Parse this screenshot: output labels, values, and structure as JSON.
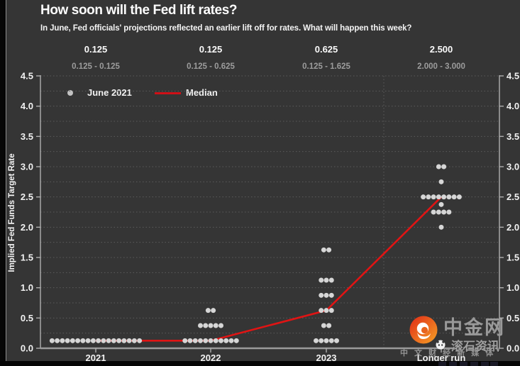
{
  "header": {
    "title": "How soon will the Fed lift rates?",
    "subtitle": "In June, Fed officials' projections reflected an earlier lift off for rates. What will happen this week?"
  },
  "chart_data": {
    "type": "scatter",
    "title": "How soon will the Fed lift rates?",
    "ylabel": "Implied Fed Funds Target Rate",
    "xlabel": "",
    "ylim": [
      0,
      4.5
    ],
    "ytick_step": 0.5,
    "grid_step": 0.25,
    "grid": "dashed, horizontal every 0.25, dual y-axis labels left and right",
    "categories": [
      "2021",
      "2022",
      "2023",
      "Longer run"
    ],
    "median_labels": [
      "0.125",
      "0.125",
      "0.625",
      "2.500"
    ],
    "range_labels": [
      "0.125 - 0.125",
      "0.125 - 0.625",
      "0.125 - 1.625",
      "2.000 - 3.000"
    ],
    "series": [
      {
        "name": "June 2021",
        "type": "dots",
        "points": [
          {
            "category": "2021",
            "value": 0.125,
            "count": 18
          },
          {
            "category": "2022",
            "value": 0.125,
            "count": 11
          },
          {
            "category": "2022",
            "value": 0.375,
            "count": 5
          },
          {
            "category": "2022",
            "value": 0.625,
            "count": 2
          },
          {
            "category": "2023",
            "value": 0.125,
            "count": 5
          },
          {
            "category": "2023",
            "value": 0.375,
            "count": 2
          },
          {
            "category": "2023",
            "value": 0.625,
            "count": 3
          },
          {
            "category": "2023",
            "value": 0.875,
            "count": 3
          },
          {
            "category": "2023",
            "value": 1.125,
            "count": 3
          },
          {
            "category": "2023",
            "value": 1.625,
            "count": 2
          },
          {
            "category": "Longer run",
            "value": 2.0,
            "count": 1
          },
          {
            "category": "Longer run",
            "value": 2.25,
            "count": 4
          },
          {
            "category": "Longer run",
            "value": 2.375,
            "count": 1
          },
          {
            "category": "Longer run",
            "value": 2.5,
            "count": 8
          },
          {
            "category": "Longer run",
            "value": 2.75,
            "count": 1
          },
          {
            "category": "Longer run",
            "value": 3.0,
            "count": 2
          }
        ]
      },
      {
        "name": "Median",
        "type": "line",
        "values": [
          0.125,
          0.125,
          0.625,
          2.5
        ]
      }
    ],
    "legend_position": "top-left inside plot"
  },
  "watermark": {
    "brand": "中金网",
    "news_badge": "滚石资讯",
    "tagline": "中 文 财 经 新 媒 体"
  },
  "colors": {
    "background": "#353535",
    "dot": "#d6d6d6",
    "median_line": "#e01414",
    "grid": "#5c5c5c",
    "axis": "#b0b0b0",
    "baseline": "#9a9a9a",
    "text": "#f2f2f2",
    "muted_text": "#9c9c9c",
    "logo_red": "#e33a1c",
    "logo_orange": "#f6a225"
  }
}
